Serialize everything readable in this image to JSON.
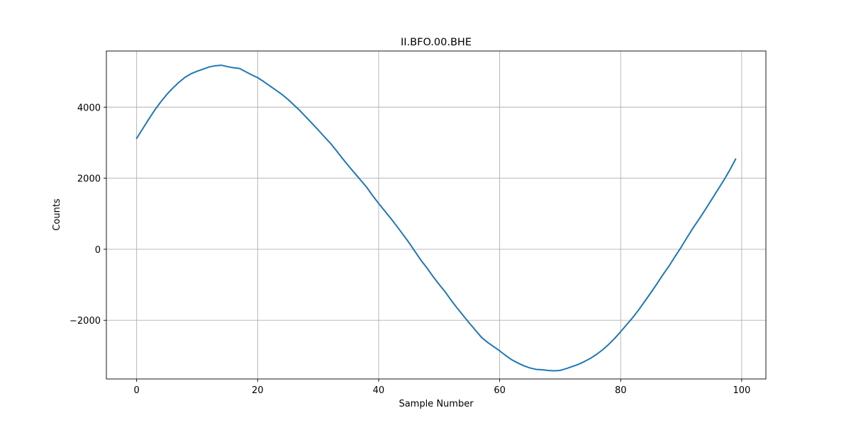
{
  "chart_data": {
    "type": "line",
    "title": "II.BFO.00.BHE",
    "xlabel": "Sample Number",
    "ylabel": "Counts",
    "xlim": [
      -5,
      104
    ],
    "ylim": [
      -3650,
      5580
    ],
    "xticks": [
      0,
      20,
      40,
      60,
      80,
      100
    ],
    "yticks": [
      -2000,
      0,
      2000,
      4000
    ],
    "grid": true,
    "color": "#1f77b4",
    "series": [
      {
        "x": [
          0,
          1,
          2,
          3,
          4,
          5,
          6,
          7,
          8,
          9,
          10,
          11,
          12,
          13,
          14,
          15,
          16,
          17,
          18,
          19,
          20,
          21,
          22,
          23,
          24,
          25,
          26,
          27,
          28,
          29,
          30,
          31,
          32,
          33,
          34,
          35,
          36,
          37,
          38,
          39,
          40,
          41,
          42,
          43,
          44,
          45,
          46,
          47,
          48,
          49,
          50,
          51,
          52,
          53,
          54,
          55,
          56,
          57,
          58,
          59,
          60,
          61,
          62,
          63,
          64,
          65,
          66,
          67,
          68,
          69,
          70,
          71,
          72,
          73,
          74,
          75,
          76,
          77,
          78,
          79,
          80,
          81,
          82,
          83,
          84,
          85,
          86,
          87,
          88,
          89,
          90,
          91,
          92,
          93,
          94,
          95,
          96,
          97,
          98,
          99
        ],
        "values": [
          3120,
          3390,
          3660,
          3920,
          4150,
          4360,
          4540,
          4700,
          4840,
          4940,
          5010,
          5070,
          5130,
          5165,
          5180,
          5140,
          5110,
          5090,
          5000,
          4910,
          4830,
          4720,
          4600,
          4480,
          4360,
          4220,
          4060,
          3900,
          3720,
          3540,
          3360,
          3170,
          2990,
          2780,
          2560,
          2350,
          2150,
          1950,
          1750,
          1510,
          1290,
          1080,
          870,
          650,
          420,
          190,
          -60,
          -310,
          -530,
          -770,
          -990,
          -1200,
          -1440,
          -1660,
          -1870,
          -2080,
          -2280,
          -2480,
          -2620,
          -2740,
          -2860,
          -2990,
          -3110,
          -3200,
          -3280,
          -3340,
          -3380,
          -3390,
          -3410,
          -3420,
          -3410,
          -3360,
          -3300,
          -3240,
          -3160,
          -3070,
          -2960,
          -2830,
          -2680,
          -2510,
          -2320,
          -2120,
          -1920,
          -1700,
          -1460,
          -1220,
          -970,
          -710,
          -470,
          -200,
          60,
          340,
          610,
          860,
          1120,
          1390,
          1660,
          1930,
          2220,
          2540
        ]
      }
    ]
  }
}
